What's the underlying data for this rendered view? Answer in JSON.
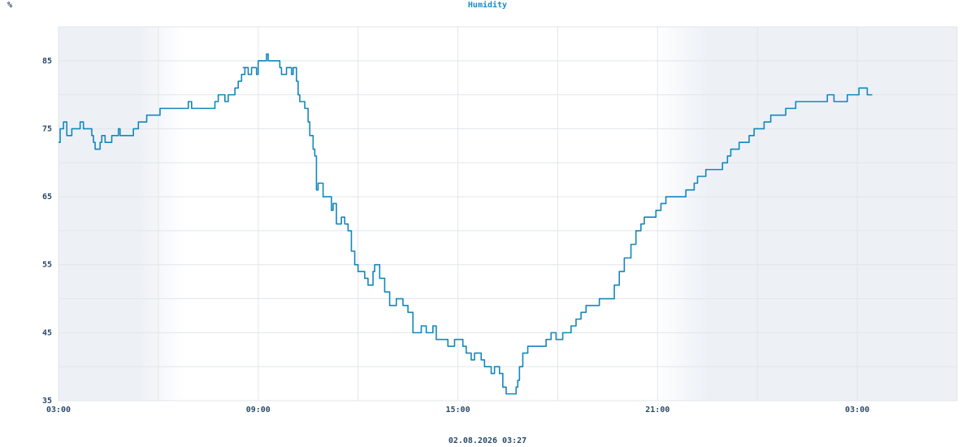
{
  "chart_data": {
    "type": "line",
    "title": "Humidity",
    "y_label": "%",
    "footer": "02.08.2026 03:27",
    "step": "after",
    "grid": true,
    "xlim": [
      0,
      27
    ],
    "xticks": [
      {
        "value": 0,
        "label": "03:00"
      },
      {
        "value": 6,
        "label": "09:00"
      },
      {
        "value": 12,
        "label": "15:00"
      },
      {
        "value": 18,
        "label": "21:00"
      },
      {
        "value": 24,
        "label": "03:00"
      }
    ],
    "minor_xticks": [
      3,
      9,
      15,
      21,
      27
    ],
    "ylim": [
      35,
      90
    ],
    "yticks": [
      35,
      45,
      55,
      65,
      75,
      85
    ],
    "minor_yticks": [
      40,
      50,
      60,
      70,
      80,
      90
    ],
    "series": [
      {
        "name": "Humidity",
        "color": "#1287bd",
        "x": [
          0,
          0.05,
          0.15,
          0.25,
          0.4,
          0.65,
          0.75,
          1.0,
          1.05,
          1.1,
          1.25,
          1.3,
          1.4,
          1.6,
          1.8,
          1.85,
          2.25,
          2.4,
          2.65,
          3.05,
          3.9,
          4.0,
          4.7,
          4.8,
          5.0,
          5.1,
          5.3,
          5.4,
          5.5,
          5.6,
          5.55,
          5.7,
          5.8,
          5.95,
          6.0,
          6.25,
          6.3,
          6.65,
          6.7,
          6.85,
          7.0,
          7.05,
          7.15,
          7.2,
          7.25,
          7.4,
          7.5,
          7.55,
          7.65,
          7.7,
          7.75,
          7.8,
          7.95,
          8.1,
          8.2,
          8.25,
          8.35,
          8.5,
          8.6,
          8.7,
          8.8,
          8.9,
          9.0,
          9.2,
          9.3,
          9.45,
          9.5,
          9.65,
          9.8,
          9.95,
          10.15,
          10.35,
          10.5,
          10.65,
          10.9,
          11.05,
          11.25,
          11.35,
          11.7,
          11.9,
          12.15,
          12.25,
          12.4,
          12.5,
          12.7,
          12.8,
          13.0,
          13.1,
          13.25,
          13.35,
          13.45,
          13.75,
          13.8,
          13.85,
          13.95,
          14.1,
          14.3,
          14.65,
          14.8,
          14.95,
          15.15,
          15.4,
          15.55,
          15.7,
          15.85,
          16.25,
          16.6,
          16.7,
          16.85,
          17.0,
          17.2,
          17.35,
          17.5,
          17.6,
          17.95,
          18.1,
          18.25,
          18.45,
          18.85,
          19.1,
          19.2,
          19.45,
          19.95,
          20.1,
          20.2,
          20.45,
          20.75,
          20.9,
          21.2,
          21.4,
          21.85,
          22.15,
          23.1,
          23.3,
          23.7,
          24.05,
          24.3,
          24.45
        ],
        "values": [
          73,
          75,
          76,
          74,
          75,
          76,
          75,
          74,
          73,
          72,
          73,
          74,
          73,
          74,
          75,
          74,
          75,
          76,
          77,
          78,
          79,
          78,
          79,
          80,
          79,
          80,
          81,
          82,
          83,
          84,
          84,
          83,
          84,
          83,
          85,
          86,
          85,
          84,
          83,
          84,
          83,
          84,
          82,
          80,
          79,
          78,
          76,
          74,
          72,
          71,
          66,
          67,
          65,
          65,
          63,
          64,
          61,
          62,
          61,
          60,
          57,
          55,
          54,
          53,
          52,
          54,
          55,
          53,
          51,
          49,
          50,
          49,
          48,
          45,
          46,
          45,
          46,
          44,
          43,
          44,
          43,
          42,
          41,
          42,
          41,
          40,
          39,
          40,
          39,
          37,
          36,
          37,
          38,
          40,
          42,
          43,
          43,
          44,
          45,
          44,
          45,
          46,
          47,
          48,
          49,
          50,
          50,
          52,
          54,
          56,
          58,
          60,
          61,
          62,
          63,
          64,
          65,
          65,
          66,
          67,
          68,
          69,
          70,
          71,
          72,
          73,
          74,
          75,
          76,
          77,
          78,
          79,
          80,
          79,
          80,
          81,
          80,
          80
        ]
      }
    ]
  }
}
